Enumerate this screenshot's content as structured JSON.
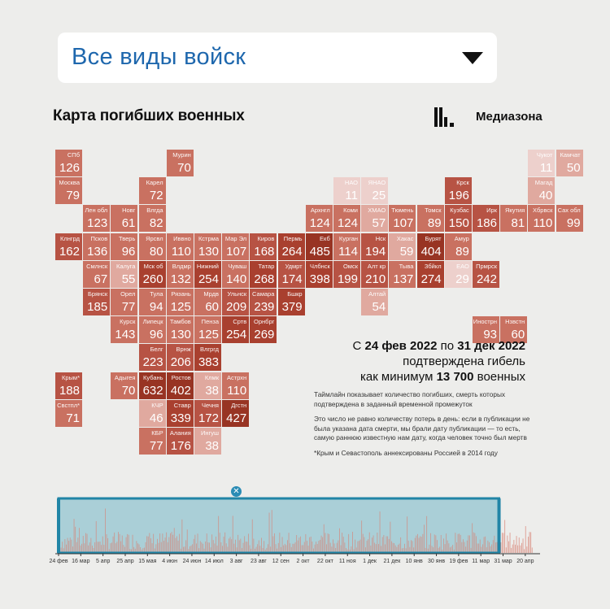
{
  "filter": {
    "selected": "Все виды войск"
  },
  "map": {
    "title": "Карта погибших военных"
  },
  "brand": {
    "name": "Медиазона"
  },
  "regions": [
    {
      "abbr": "СПб",
      "value": "126"
    },
    {
      "abbr": "Москва",
      "value": "79"
    },
    {
      "abbr": "Клнгрд",
      "value": "162"
    },
    {
      "abbr": "Мурин",
      "value": "70"
    },
    {
      "abbr": "Карел",
      "value": "72"
    },
    {
      "abbr": "НАО",
      "value": "11"
    },
    {
      "abbr": "ЯНАО",
      "value": "25"
    },
    {
      "abbr": "Крск",
      "value": "196"
    },
    {
      "abbr": "Чукот",
      "value": "11"
    },
    {
      "abbr": "Камчат",
      "value": "50"
    },
    {
      "abbr": "Магад",
      "value": "40"
    },
    {
      "abbr": "Лен обл",
      "value": "123"
    },
    {
      "abbr": "Новг",
      "value": "61"
    },
    {
      "abbr": "Влгда",
      "value": "82"
    },
    {
      "abbr": "Архнгл",
      "value": "124"
    },
    {
      "abbr": "Коми",
      "value": "124"
    },
    {
      "abbr": "ХМАО",
      "value": "57"
    },
    {
      "abbr": "Тюмень",
      "value": "107"
    },
    {
      "abbr": "Томск",
      "value": "89"
    },
    {
      "abbr": "Кузбас",
      "value": "150"
    },
    {
      "abbr": "Ирк",
      "value": "186"
    },
    {
      "abbr": "Якутия",
      "value": "81"
    },
    {
      "abbr": "Хбрвск",
      "value": "110"
    },
    {
      "abbr": "Сах обл",
      "value": "99"
    },
    {
      "abbr": "Псков",
      "value": "136"
    },
    {
      "abbr": "Тверь",
      "value": "96"
    },
    {
      "abbr": "Ярсвл",
      "value": "80"
    },
    {
      "abbr": "Иввно",
      "value": "110"
    },
    {
      "abbr": "Кстрма",
      "value": "130"
    },
    {
      "abbr": "Мар Эл",
      "value": "107"
    },
    {
      "abbr": "Киров",
      "value": "168"
    },
    {
      "abbr": "Пермь",
      "value": "264"
    },
    {
      "abbr": "Екб",
      "value": "485"
    },
    {
      "abbr": "Курган",
      "value": "114"
    },
    {
      "abbr": "Нск",
      "value": "194"
    },
    {
      "abbr": "Хакас",
      "value": "59"
    },
    {
      "abbr": "Бурят",
      "value": "404"
    },
    {
      "abbr": "Амур",
      "value": "89"
    },
    {
      "abbr": "Смлнск",
      "value": "67"
    },
    {
      "abbr": "Калуга",
      "value": "55"
    },
    {
      "abbr": "Мск об",
      "value": "260"
    },
    {
      "abbr": "Влдмр",
      "value": "132"
    },
    {
      "abbr": "Нижний",
      "value": "254"
    },
    {
      "abbr": "Чуваш",
      "value": "140"
    },
    {
      "abbr": "Татар",
      "value": "268"
    },
    {
      "abbr": "Удмрт",
      "value": "174"
    },
    {
      "abbr": "Члбнск",
      "value": "398"
    },
    {
      "abbr": "Омск",
      "value": "199"
    },
    {
      "abbr": "Алт кр",
      "value": "210"
    },
    {
      "abbr": "Тыва",
      "value": "137"
    },
    {
      "abbr": "Збйкл",
      "value": "274"
    },
    {
      "abbr": "ЕАО",
      "value": "29"
    },
    {
      "abbr": "Прмрск",
      "value": "242"
    },
    {
      "abbr": "Брянск",
      "value": "185"
    },
    {
      "abbr": "Орел",
      "value": "77"
    },
    {
      "abbr": "Тула",
      "value": "94"
    },
    {
      "abbr": "Рязань",
      "value": "125"
    },
    {
      "abbr": "Мрдв",
      "value": "60"
    },
    {
      "abbr": "Ульнск",
      "value": "209"
    },
    {
      "abbr": "Самара",
      "value": "239"
    },
    {
      "abbr": "Бшкр",
      "value": "379"
    },
    {
      "abbr": "Алтай",
      "value": "54"
    },
    {
      "abbr": "Инострн",
      "value": "93"
    },
    {
      "abbr": "Нзвстн",
      "value": "60"
    },
    {
      "abbr": "Курск",
      "value": "143"
    },
    {
      "abbr": "Липецк",
      "value": "96"
    },
    {
      "abbr": "Тамбов",
      "value": "130"
    },
    {
      "abbr": "Пенза",
      "value": "125"
    },
    {
      "abbr": "Сртв",
      "value": "254"
    },
    {
      "abbr": "Орнбрг",
      "value": "269"
    },
    {
      "abbr": "Белг",
      "value": "223"
    },
    {
      "abbr": "Врнж",
      "value": "206"
    },
    {
      "abbr": "Влгргд",
      "value": "383"
    },
    {
      "abbr": "Крым*",
      "value": "188"
    },
    {
      "abbr": "Адыгея",
      "value": "70"
    },
    {
      "abbr": "Кубань",
      "value": "632"
    },
    {
      "abbr": "Ростов",
      "value": "402"
    },
    {
      "abbr": "Клмк",
      "value": "38"
    },
    {
      "abbr": "Астрхн",
      "value": "110"
    },
    {
      "abbr": "Свстпл*",
      "value": "71"
    },
    {
      "abbr": "КЧР",
      "value": "46"
    },
    {
      "abbr": "Ставр",
      "value": "339"
    },
    {
      "abbr": "Чечня",
      "value": "172"
    },
    {
      "abbr": "Дгстн",
      "value": "427"
    },
    {
      "abbr": "КБР",
      "value": "77"
    },
    {
      "abbr": "Алания",
      "value": "176"
    },
    {
      "abbr": "Ингуш",
      "value": "38"
    }
  ],
  "summary": {
    "line1_a": "С ",
    "date_from": "24 фев 2022",
    "line1_b": " по ",
    "date_to": "31 дек 2022",
    "line2": "подтверждена гибель",
    "line3_a": "как минимум ",
    "total": "13 700",
    "line3_b": " военных"
  },
  "notes": [
    "Таймлайн показывает количество погибших, смерть которых подтверждена в заданный временной промежуток",
    "Это число не равно количеству потерь в день: если в публикации не была указана дата смерти, мы брали дату публикации — то есть, самую раннюю известную нам дату, когда человек точно был мертв",
    "*Крым и Севастополь аннексированы Россией в 2014 году"
  ],
  "timeline": {
    "close_icon_glyph": "✕",
    "selection": {
      "from_index": 0,
      "to_index": 20
    },
    "tick_labels": [
      "24 фев",
      "16 мар",
      "5 апр",
      "25 апр",
      "15 мая",
      "4 июн",
      "24 июн",
      "14 июл",
      "3 авг",
      "23 авг",
      "12 сен",
      "2 окт",
      "22 окт",
      "11 ноя",
      "1 дек",
      "21 дек",
      "10 янв",
      "30 янв",
      "19 фев",
      "11 мар",
      "31 мар",
      "20 апр"
    ],
    "colors": {
      "selected_bg": "#aacfd7",
      "frame": "#2185a6",
      "bar_selected": "#c99a93",
      "bar_unselected": "#dd9c91"
    }
  },
  "colors": {
    "scale": [
      "#edd0cc",
      "#e0a99f",
      "#c97161",
      "#b75344",
      "#a9402f",
      "#983423"
    ]
  }
}
